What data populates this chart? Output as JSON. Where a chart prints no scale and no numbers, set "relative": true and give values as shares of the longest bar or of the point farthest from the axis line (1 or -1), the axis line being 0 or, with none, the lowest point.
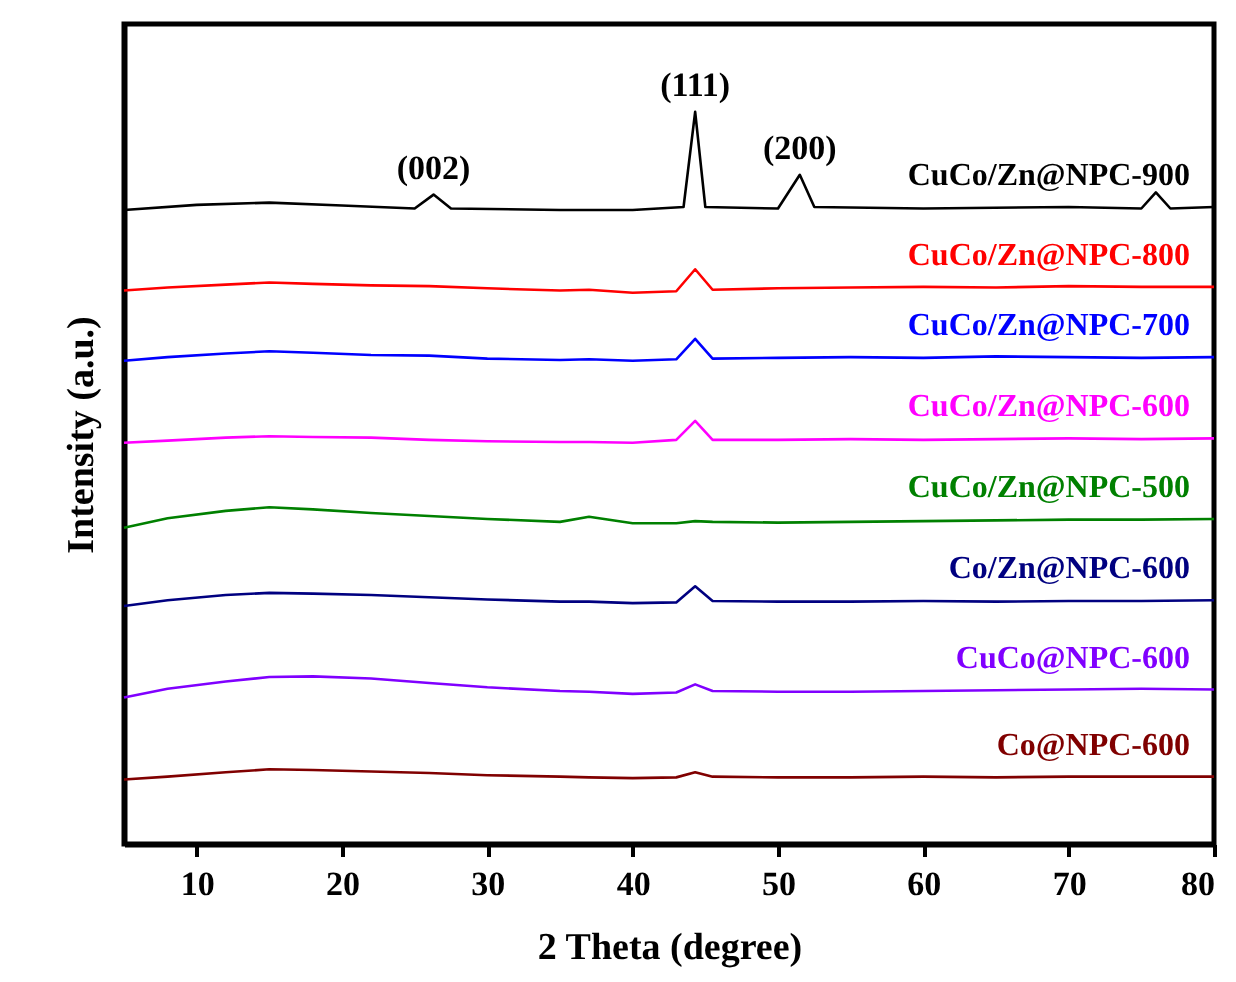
{
  "chart_data": {
    "type": "line",
    "relative": true,
    "xlabel": "2 Theta (degree)",
    "ylabel": "Intensity (a.u.)",
    "xlim": [
      5,
      80
    ],
    "xticks": [
      10,
      20,
      30,
      40,
      50,
      60,
      70,
      80
    ],
    "annotations": [
      {
        "text": "(002)",
        "x": 26.3,
        "y": 0.887
      },
      {
        "text": "(111)",
        "x": 44.3,
        "y": 1.0
      },
      {
        "text": "(200)",
        "x": 51.5,
        "y": 0.914
      }
    ],
    "series": [
      {
        "name": "CuCo/Zn@NPC-900",
        "color": "#000000",
        "x": [
          5,
          10,
          15,
          20,
          25,
          26.3,
          27.5,
          35,
          40,
          43.5,
          44.3,
          45,
          50,
          51.5,
          52.5,
          60,
          70,
          75,
          76,
          77,
          80
        ],
        "values": [
          0.866,
          0.873,
          0.876,
          0.872,
          0.868,
          0.887,
          0.868,
          0.866,
          0.866,
          0.87,
          1.0,
          0.87,
          0.868,
          0.914,
          0.87,
          0.868,
          0.87,
          0.868,
          0.89,
          0.868,
          0.87
        ]
      },
      {
        "name": "CuCo/Zn@NPC-800",
        "color": "#ff0000",
        "x": [
          5,
          8,
          12,
          15,
          18,
          22,
          26,
          30,
          35,
          37,
          40,
          43,
          44.3,
          45.5,
          50,
          55,
          60,
          65,
          70,
          75,
          80
        ],
        "values": [
          0.756,
          0.76,
          0.764,
          0.767,
          0.765,
          0.763,
          0.762,
          0.759,
          0.756,
          0.757,
          0.753,
          0.755,
          0.785,
          0.757,
          0.759,
          0.76,
          0.761,
          0.76,
          0.762,
          0.761,
          0.761
        ]
      },
      {
        "name": "CuCo/Zn@NPC-700",
        "color": "#0000ff",
        "x": [
          5,
          8,
          12,
          15,
          18,
          22,
          26,
          30,
          35,
          37,
          40,
          43,
          44.3,
          45.5,
          50,
          55,
          60,
          65,
          70,
          75,
          80
        ],
        "values": [
          0.66,
          0.665,
          0.67,
          0.673,
          0.671,
          0.668,
          0.667,
          0.663,
          0.661,
          0.662,
          0.66,
          0.662,
          0.69,
          0.663,
          0.664,
          0.665,
          0.664,
          0.666,
          0.665,
          0.664,
          0.665
        ]
      },
      {
        "name": "CuCo/Zn@NPC-600",
        "color": "#ff00ff",
        "x": [
          5,
          8,
          12,
          15,
          18,
          22,
          26,
          30,
          35,
          37,
          40,
          43,
          44.3,
          45.5,
          50,
          55,
          60,
          65,
          70,
          75,
          80
        ],
        "values": [
          0.548,
          0.551,
          0.555,
          0.557,
          0.556,
          0.555,
          0.552,
          0.55,
          0.549,
          0.549,
          0.548,
          0.552,
          0.578,
          0.552,
          0.552,
          0.553,
          0.552,
          0.553,
          0.554,
          0.553,
          0.554
        ]
      },
      {
        "name": "CuCo/Zn@NPC-500",
        "color": "#008000",
        "x": [
          5,
          8,
          12,
          15,
          18,
          22,
          26,
          30,
          35,
          37,
          40,
          43,
          44.3,
          45.5,
          50,
          55,
          60,
          65,
          70,
          75,
          80
        ],
        "values": [
          0.432,
          0.445,
          0.455,
          0.46,
          0.457,
          0.452,
          0.448,
          0.444,
          0.44,
          0.447,
          0.438,
          0.438,
          0.441,
          0.44,
          0.439,
          0.44,
          0.441,
          0.442,
          0.443,
          0.443,
          0.444
        ]
      },
      {
        "name": "Co/Zn@NPC-600",
        "color": "#000080",
        "x": [
          5,
          8,
          12,
          15,
          18,
          22,
          26,
          30,
          35,
          37,
          40,
          43,
          44.3,
          45.5,
          50,
          55,
          60,
          65,
          70,
          75,
          80
        ],
        "values": [
          0.325,
          0.333,
          0.34,
          0.343,
          0.342,
          0.34,
          0.337,
          0.334,
          0.331,
          0.331,
          0.329,
          0.33,
          0.352,
          0.332,
          0.331,
          0.331,
          0.332,
          0.331,
          0.332,
          0.332,
          0.333
        ]
      },
      {
        "name": "CuCo@NPC-600",
        "color": "#8000ff",
        "x": [
          5,
          8,
          12,
          15,
          18,
          22,
          26,
          30,
          35,
          37,
          40,
          43,
          44.3,
          45.5,
          50,
          55,
          60,
          65,
          70,
          75,
          80
        ],
        "values": [
          0.2,
          0.212,
          0.222,
          0.228,
          0.229,
          0.226,
          0.22,
          0.214,
          0.209,
          0.208,
          0.205,
          0.207,
          0.218,
          0.209,
          0.208,
          0.208,
          0.209,
          0.21,
          0.211,
          0.212,
          0.211
        ]
      },
      {
        "name": "Co@NPC-600",
        "color": "#800000",
        "x": [
          5,
          8,
          12,
          15,
          18,
          22,
          26,
          30,
          35,
          37,
          40,
          43,
          44.3,
          45.5,
          50,
          55,
          60,
          65,
          70,
          75,
          80
        ],
        "values": [
          0.088,
          0.092,
          0.098,
          0.102,
          0.101,
          0.099,
          0.097,
          0.094,
          0.092,
          0.091,
          0.09,
          0.091,
          0.098,
          0.092,
          0.091,
          0.091,
          0.092,
          0.091,
          0.092,
          0.092,
          0.092
        ]
      }
    ]
  }
}
